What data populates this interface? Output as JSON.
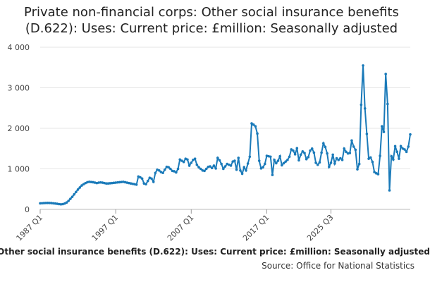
{
  "chart_data": {
    "type": "line",
    "title": "Private non-financial corps: Other social insurance benefits (D.622): Uses: Current price: £million: Seasonally adjusted",
    "caption": "Private non-financial corps: Other social insurance benefits (D.622): Uses: Current price: £million: Seasonally adjusted",
    "source": "Source: Office for National Statistics",
    "x_start": "1987 Q1",
    "x_ticks": [
      "1987 Q1",
      "1997 Q1",
      "2007 Q1",
      "2017 Q1",
      "2025 Q3"
    ],
    "y_ticks": [
      "0",
      "1 000",
      "2 000",
      "3 000",
      "4 000"
    ],
    "ylim": [
      0,
      4000
    ],
    "grid": "horizontal",
    "color": "#1a7ab9",
    "values": [
      150,
      152,
      155,
      158,
      160,
      158,
      155,
      150,
      145,
      138,
      130,
      125,
      130,
      145,
      170,
      210,
      260,
      310,
      370,
      430,
      490,
      540,
      590,
      620,
      650,
      670,
      680,
      675,
      670,
      660,
      650,
      660,
      665,
      660,
      650,
      640,
      640,
      645,
      650,
      655,
      660,
      665,
      670,
      675,
      680,
      670,
      660,
      650,
      640,
      630,
      620,
      610,
      810,
      790,
      760,
      640,
      620,
      700,
      780,
      760,
      680,
      900,
      980,
      960,
      920,
      900,
      980,
      1050,
      1040,
      1000,
      950,
      940,
      910,
      1000,
      1230,
      1200,
      1170,
      1250,
      1230,
      1080,
      1150,
      1220,
      1250,
      1100,
      1040,
      1000,
      960,
      950,
      1000,
      1050,
      1060,
      1020,
      1080,
      1010,
      1270,
      1210,
      1120,
      1000,
      1060,
      1120,
      1100,
      1080,
      1180,
      1200,
      980,
      1270,
      960,
      880,
      1040,
      960,
      1130,
      1300,
      2120,
      2090,
      2050,
      1870,
      1200,
      1010,
      1040,
      1120,
      1320,
      1310,
      1300,
      850,
      1220,
      1140,
      1200,
      1310,
      1090,
      1140,
      1180,
      1220,
      1300,
      1480,
      1450,
      1360,
      1510,
      1210,
      1350,
      1430,
      1390,
      1240,
      1290,
      1450,
      1500,
      1400,
      1150,
      1100,
      1160,
      1400,
      1630,
      1540,
      1380,
      1050,
      1150,
      1350,
      1130,
      1260,
      1220,
      1260,
      1220,
      1500,
      1420,
      1380,
      1390,
      1700,
      1550,
      1470,
      990,
      1120,
      2580,
      3550,
      2490,
      1860,
      1250,
      1280,
      1170,
      920,
      890,
      870,
      1320,
      2050,
      1910,
      3340,
      2600,
      470,
      1310,
      1230,
      1560,
      1420,
      1250,
      1560,
      1500,
      1480,
      1420,
      1550,
      1850
    ]
  }
}
